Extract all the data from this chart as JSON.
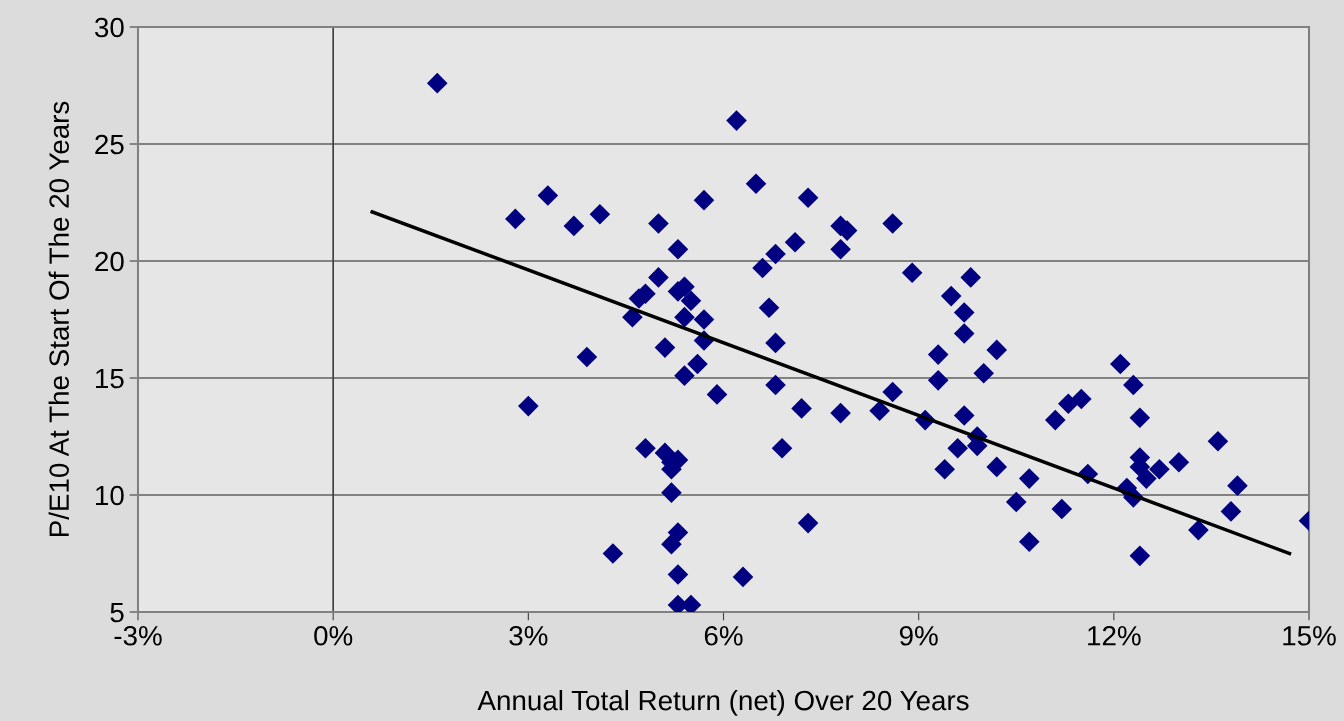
{
  "chart_data": {
    "type": "scatter",
    "xlabel": "Annual Total Return (net) Over 20 Years",
    "ylabel": "P/E10 At The Start Of The 20 Years",
    "xlim": [
      -3,
      15
    ],
    "ylim": [
      5,
      30
    ],
    "xticks": [
      {
        "value": -3,
        "label": "-3%"
      },
      {
        "value": 0,
        "label": "0%"
      },
      {
        "value": 3,
        "label": "3%"
      },
      {
        "value": 6,
        "label": "6%"
      },
      {
        "value": 9,
        "label": "9%"
      },
      {
        "value": 12,
        "label": "12%"
      },
      {
        "value": 15,
        "label": "15%"
      }
    ],
    "yticks": [
      5,
      10,
      15,
      20,
      25,
      30
    ],
    "grid": "y",
    "ref_lines": [
      {
        "axis": "x",
        "value": 0,
        "color": "#404040"
      }
    ],
    "series": [
      {
        "marker": "diamond",
        "color": "#000080",
        "x": [
          1.6,
          2.8,
          3.3,
          3.7,
          4.1,
          3.0,
          3.9,
          4.3,
          4.8,
          4.6,
          4.7,
          4.8,
          5.0,
          5.0,
          5.1,
          5.1,
          5.2,
          5.2,
          5.2,
          5.2,
          5.3,
          5.3,
          5.3,
          5.5,
          5.3,
          5.3,
          5.3,
          5.4,
          5.4,
          5.4,
          5.5,
          5.6,
          5.7,
          5.7,
          5.7,
          6.2,
          5.9,
          6.3,
          6.5,
          6.6,
          6.8,
          6.7,
          6.8,
          6.8,
          6.9,
          7.1,
          7.3,
          7.2,
          7.3,
          7.8,
          7.8,
          7.8,
          7.9,
          8.4,
          8.6,
          8.6,
          8.9,
          9.1,
          9.3,
          9.3,
          9.4,
          9.5,
          9.7,
          9.7,
          9.6,
          9.7,
          9.8,
          9.9,
          9.9,
          10.0,
          10.2,
          10.2,
          10.5,
          10.7,
          10.7,
          11.1,
          11.2,
          11.3,
          11.5,
          11.6,
          12.1,
          12.2,
          12.3,
          12.3,
          12.4,
          12.4,
          12.4,
          12.4,
          12.5,
          12.7,
          13.0,
          13.3,
          13.6,
          13.8,
          13.9,
          15.0
        ],
        "values": [
          27.6,
          21.8,
          22.8,
          21.5,
          22.0,
          13.8,
          15.9,
          7.5,
          12.0,
          17.6,
          18.4,
          18.6,
          19.3,
          21.6,
          16.3,
          11.8,
          10.1,
          11.4,
          11.1,
          7.9,
          8.4,
          6.6,
          5.3,
          5.3,
          11.5,
          20.5,
          18.7,
          18.9,
          17.6,
          15.1,
          18.3,
          15.6,
          17.5,
          16.6,
          22.6,
          26.0,
          14.3,
          6.5,
          23.3,
          19.7,
          20.3,
          18.0,
          16.5,
          14.7,
          12.0,
          20.8,
          22.7,
          13.7,
          8.8,
          13.5,
          20.5,
          21.5,
          21.3,
          13.6,
          21.6,
          14.4,
          19.5,
          13.2,
          16.0,
          14.9,
          11.1,
          18.5,
          17.8,
          16.9,
          12.0,
          13.4,
          19.3,
          12.5,
          12.1,
          15.2,
          16.2,
          11.2,
          9.7,
          10.7,
          8.0,
          13.2,
          9.4,
          13.9,
          14.1,
          10.9,
          15.6,
          10.3,
          14.7,
          9.9,
          13.3,
          11.6,
          11.2,
          7.4,
          10.7,
          11.1,
          11.4,
          8.5,
          12.3,
          9.3,
          10.4,
          8.9
        ]
      },
      {
        "type": "line",
        "marker": "none",
        "line_style": "solid",
        "color": "#000000",
        "x": [
          0.6,
          14.7
        ],
        "values": [
          22.1,
          7.5
        ]
      }
    ]
  }
}
